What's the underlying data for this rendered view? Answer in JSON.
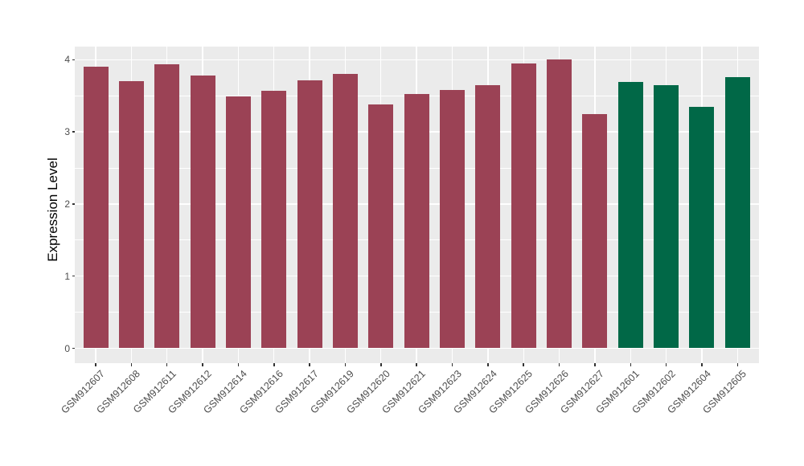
{
  "page": {
    "background": "#FFFFFF"
  },
  "chart_data": {
    "type": "bar",
    "title": "",
    "xlabel": "",
    "ylabel": "Expression Level",
    "categories": [
      "GSM912607",
      "GSM912608",
      "GSM912611",
      "GSM912612",
      "GSM912614",
      "GSM912616",
      "GSM912617",
      "GSM912619",
      "GSM912620",
      "GSM912621",
      "GSM912623",
      "GSM912624",
      "GSM912625",
      "GSM912626",
      "GSM912627",
      "GSM912601",
      "GSM912602",
      "GSM912604",
      "GSM912605"
    ],
    "values": [
      3.9,
      3.7,
      3.94,
      3.78,
      3.49,
      3.57,
      3.71,
      3.8,
      3.38,
      3.53,
      3.58,
      3.65,
      3.95,
      4.0,
      3.25,
      3.69,
      3.65,
      3.35,
      3.76
    ],
    "groups": [
      "group1",
      "group1",
      "group1",
      "group1",
      "group1",
      "group1",
      "group1",
      "group1",
      "group1",
      "group1",
      "group1",
      "group1",
      "group1",
      "group1",
      "group1",
      "group2",
      "group2",
      "group2",
      "group2"
    ],
    "group_colors": {
      "group1": "#9B4255",
      "group2": "#016847"
    },
    "ylim": [
      0,
      4.18
    ],
    "yticks": [
      0,
      1,
      2,
      3,
      4
    ],
    "ytick_labels": [
      "0",
      "1",
      "2",
      "3",
      "4"
    ],
    "minor_yticks": [
      0.5,
      1.5,
      2.5,
      3.5
    ],
    "grid": "major and minor horizontal white lines, vertical white line at each category center",
    "legend": "none",
    "style": {
      "panel_background": "#EBEBEB",
      "grid_color": "#FFFFFF",
      "axis_text_color": "#4D4D4D",
      "axis_title_color": "#000000",
      "tick_mark_color": "#333333"
    }
  }
}
